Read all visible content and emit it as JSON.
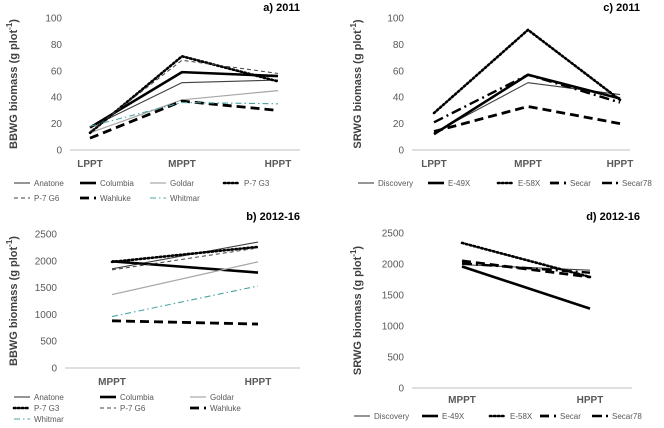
{
  "chart_data": [
    {
      "id": "a",
      "type": "line",
      "title": "a) 2011",
      "ylabel": "BBWG biomass (g plot",
      "ylabel_sup": "-1",
      "ylabel_close": ")",
      "ylim": [
        0,
        100
      ],
      "yticks": [
        0,
        20,
        40,
        60,
        80,
        100
      ],
      "categories": [
        "LPPT",
        "MPPT",
        "HPPT"
      ],
      "series": [
        {
          "name": "Anatone",
          "values": [
            17,
            51,
            53
          ],
          "style": "thin"
        },
        {
          "name": "Columbia",
          "values": [
            17,
            59,
            56
          ],
          "style": "thick"
        },
        {
          "name": "Goldar",
          "values": [
            13,
            38,
            45
          ],
          "style": "gray"
        },
        {
          "name": "P-7 G3",
          "values": [
            13,
            71,
            52
          ],
          "style": "dotted"
        },
        {
          "name": "P-7 G6",
          "values": [
            14,
            68,
            58
          ],
          "style": "dashthin"
        },
        {
          "name": "Wahluke",
          "values": [
            9,
            37,
            30
          ],
          "style": "dashthick"
        },
        {
          "name": "Whitmar",
          "values": [
            18,
            36,
            35
          ],
          "style": "dashdotteal"
        }
      ]
    },
    {
      "id": "c",
      "type": "line",
      "title": "c) 2011",
      "ylabel": "SRWG biomass (g plot",
      "ylabel_sup": "-1",
      "ylabel_close": ")",
      "ylim": [
        0,
        100
      ],
      "yticks": [
        0,
        20,
        40,
        60,
        80,
        100
      ],
      "categories": [
        "LPPT",
        "MPPT",
        "HPPT"
      ],
      "series": [
        {
          "name": "Discovery",
          "values": [
            13,
            51,
            42
          ],
          "style": "thin"
        },
        {
          "name": "E-49X",
          "values": [
            12,
            57,
            39
          ],
          "style": "thick"
        },
        {
          "name": "E-58X",
          "values": [
            28,
            91,
            38
          ],
          "style": "dotted"
        },
        {
          "name": "Secar",
          "values": [
            14,
            33,
            20
          ],
          "style": "dashthick"
        },
        {
          "name": "Secar78",
          "values": [
            21,
            57,
            36
          ],
          "style": "dashdot"
        }
      ]
    },
    {
      "id": "b",
      "type": "line",
      "title": "b) 2012-16",
      "ylabel": "BBWG biomass (g plot",
      "ylabel_sup": "-1",
      "ylabel_close": ")",
      "ylim": [
        0,
        2500
      ],
      "yticks": [
        0,
        500,
        1000,
        1500,
        2000,
        2500
      ],
      "categories": [
        "MPPT",
        "HPPT"
      ],
      "series": [
        {
          "name": "Anatone",
          "values": [
            1850,
            2350
          ],
          "style": "thin"
        },
        {
          "name": "Columbia",
          "values": [
            1990,
            1780
          ],
          "style": "thick"
        },
        {
          "name": "Goldar",
          "values": [
            1370,
            1980
          ],
          "style": "gray"
        },
        {
          "name": "P-7 G3",
          "values": [
            1980,
            2260
          ],
          "style": "dotted"
        },
        {
          "name": "P-7 G6",
          "values": [
            1830,
            2240
          ],
          "style": "dashthin"
        },
        {
          "name": "Wahluke",
          "values": [
            880,
            820
          ],
          "style": "dashthick"
        },
        {
          "name": "Whitmar",
          "values": [
            960,
            1530
          ],
          "style": "dashdotteal"
        }
      ]
    },
    {
      "id": "d",
      "type": "line",
      "title": "d) 2012-16",
      "ylabel": "SRWG biomass (g plot",
      "ylabel_sup": "-1",
      "ylabel_close": ")",
      "ylim": [
        0,
        2500
      ],
      "yticks": [
        0,
        500,
        1000,
        1500,
        2000,
        2500
      ],
      "categories": [
        "MPPT",
        "HPPT"
      ],
      "series": [
        {
          "name": "Discovery",
          "values": [
            1990,
            1900
          ],
          "style": "thin"
        },
        {
          "name": "E-49X",
          "values": [
            1960,
            1280
          ],
          "style": "thick"
        },
        {
          "name": "E-58X",
          "values": [
            2340,
            1790
          ],
          "style": "dotted"
        },
        {
          "name": "Secar",
          "values": [
            2050,
            1790
          ],
          "style": "dashthick"
        },
        {
          "name": "Secar78",
          "values": [
            2010,
            1860
          ],
          "style": "dashdot"
        }
      ]
    }
  ],
  "colors": {
    "axis": "#bfbfbf",
    "thin": "#404040",
    "thick": "#000000",
    "gray": "#a6a6a6",
    "teal": "#4aa3a3"
  }
}
